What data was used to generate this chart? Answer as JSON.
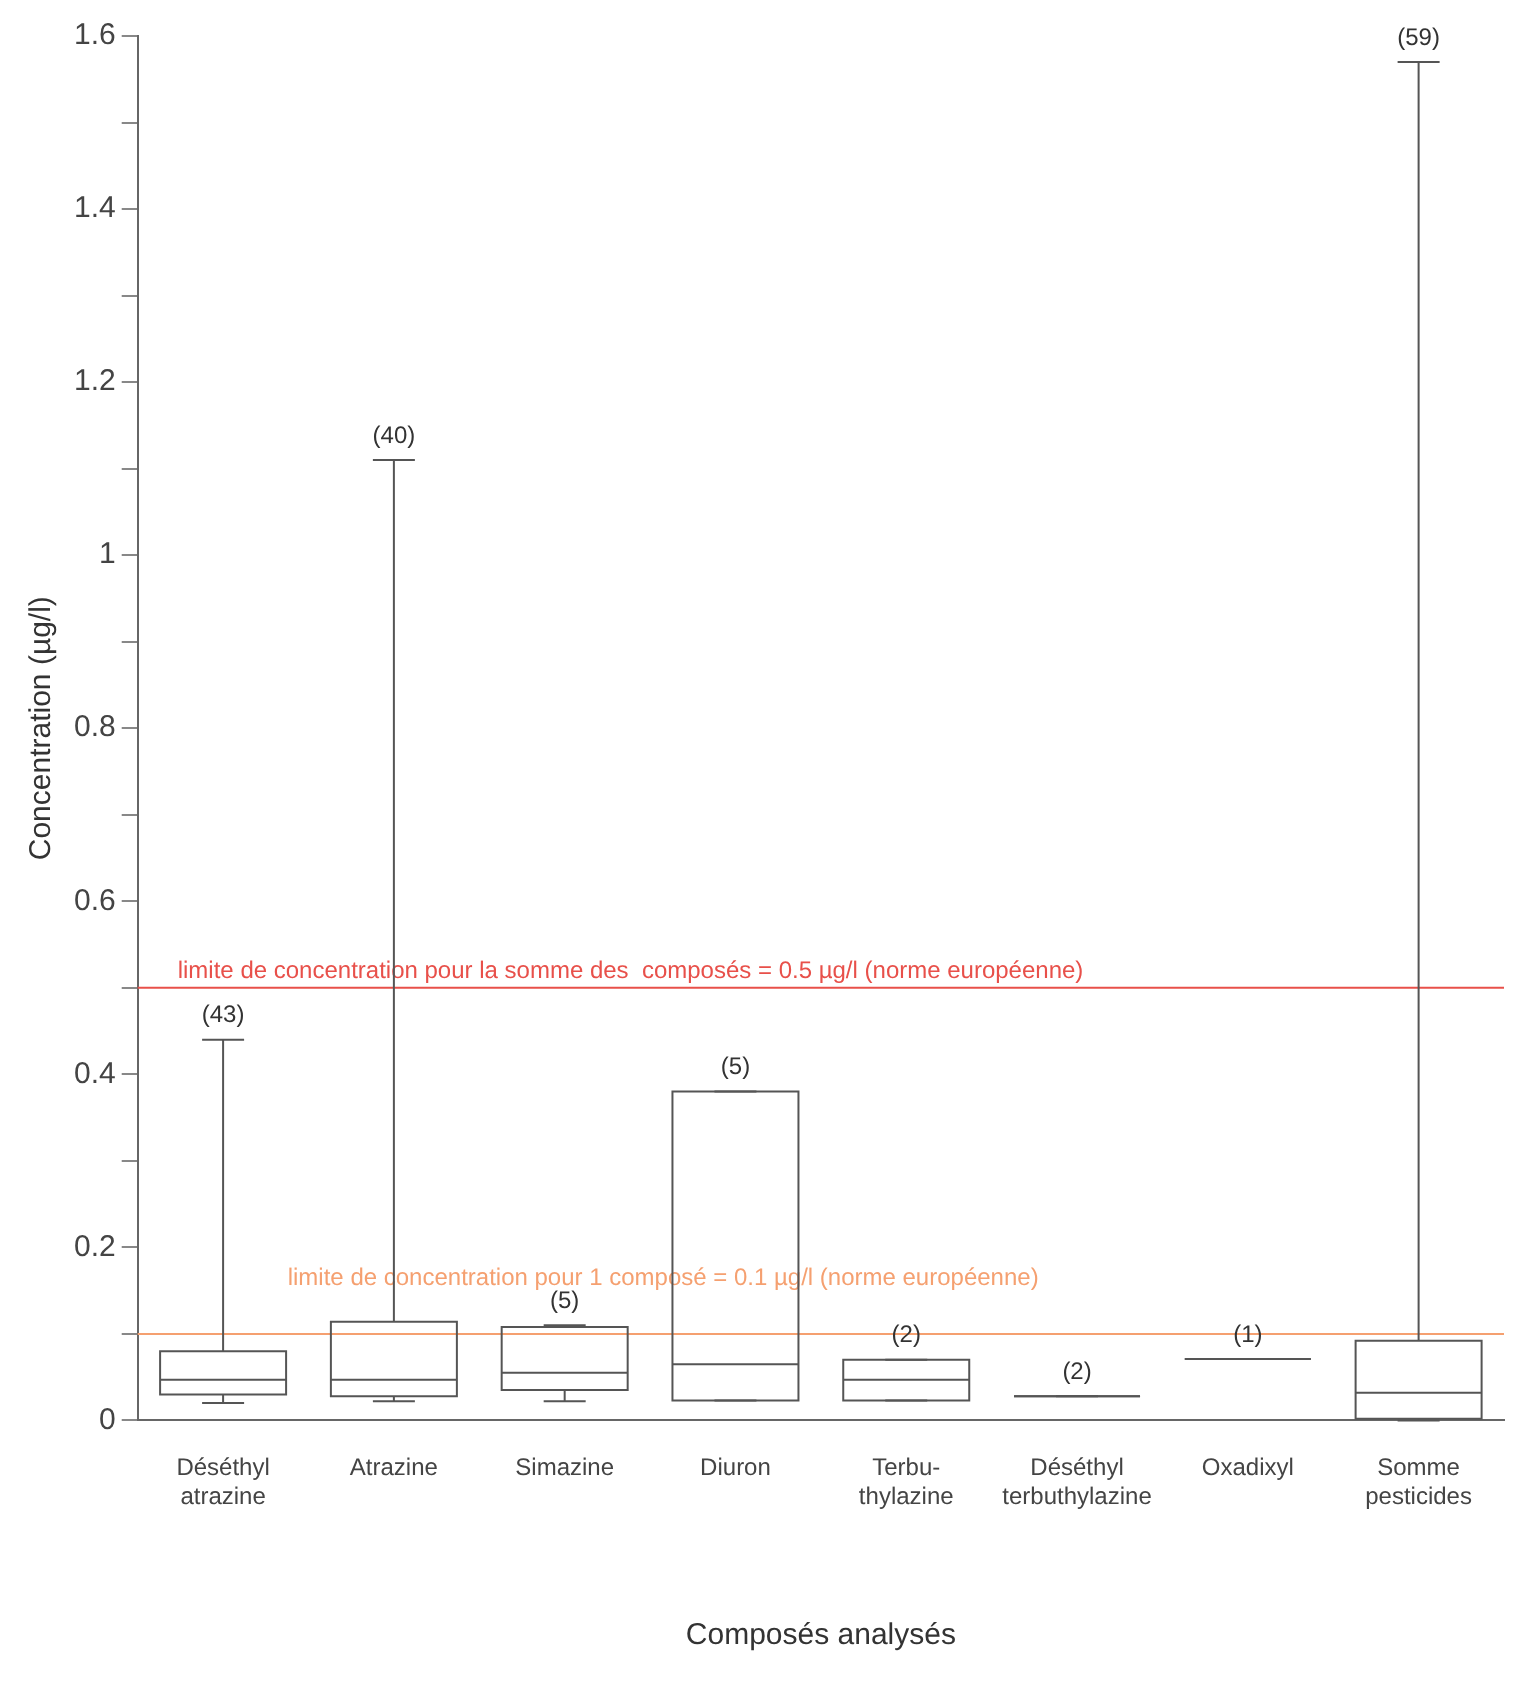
{
  "chart_data": {
    "type": "box",
    "xlabel": "Composés analysés",
    "ylabel": "Concentration (µg/l)",
    "categories": [
      "Déséthyl atrazine",
      "Atrazine",
      "Simazine",
      "Diuron",
      "Terbu-thylazine",
      "Déséthyl terbuthylazine",
      "Oxadixyl",
      "Somme pesticides"
    ],
    "boxes": [
      {
        "low": 0.02,
        "q1": 0.03,
        "median": 0.047,
        "q3": 0.08,
        "high": 0.44
      },
      {
        "low": 0.022,
        "q1": 0.028,
        "median": 0.047,
        "q3": 0.114,
        "high": 1.11
      },
      {
        "low": 0.022,
        "q1": 0.035,
        "median": 0.055,
        "q3": 0.108,
        "high": 0.11
      },
      {
        "low": 0.023,
        "q1": 0.023,
        "median": 0.065,
        "q3": 0.38,
        "high": 0.38
      },
      {
        "low": 0.023,
        "q1": 0.023,
        "median": 0.047,
        "q3": 0.07,
        "high": 0.07
      },
      {
        "low": 0.028,
        "q1": 0.028,
        "median": 0.028,
        "q3": 0.028,
        "high": 0.028
      },
      {
        "low": 0.071,
        "q1": 0.071,
        "median": 0.071,
        "q3": 0.071,
        "high": 0.071
      },
      {
        "low": 0,
        "q1": 0.002,
        "median": 0.032,
        "q3": 0.092,
        "high": 1.57
      }
    ],
    "color": "#555555",
    "ylim": [
      0,
      1.6
    ],
    "yticks": [
      0,
      {
        "value": 0.1,
        "label": null
      },
      0.2,
      {
        "value": 0.3,
        "label": null
      },
      0.4,
      {
        "value": 0.5,
        "label": null
      },
      0.6,
      {
        "value": 0.7,
        "label": null
      },
      0.8,
      {
        "value": 0.9,
        "label": null
      },
      1,
      {
        "value": 1.1,
        "label": null
      },
      1.2,
      {
        "value": 1.3,
        "label": null
      },
      1.4,
      {
        "value": 1.5,
        "label": null
      },
      1.6
    ],
    "ref_lines": [
      {
        "axis": "y",
        "value": 0.5,
        "label": "limite de concentration pour la somme des  composés = 0.5 µg/l (norme européenne)",
        "color": "#e8504a"
      },
      {
        "axis": "y",
        "value": 0.1,
        "label": "limite de concentration pour 1 composé = 0.1 µg/l (norme européenne)",
        "color": "#f5a070"
      }
    ],
    "annotations": [
      {
        "text": "(43)",
        "x": "Déséthyl atrazine",
        "y": 0.44
      },
      {
        "text": "(40)",
        "x": "Atrazine",
        "y": 1.11
      },
      {
        "text": "(5)",
        "x": "Simazine",
        "y": 0.11
      },
      {
        "text": "(5)",
        "x": "Diuron",
        "y": 0.38
      },
      {
        "text": "(2)",
        "x": "Terbu-thylazine",
        "y": 0.07
      },
      {
        "text": "(2)",
        "x": "Déséthyl terbuthylazine",
        "y": 0.028
      },
      {
        "text": "(1)",
        "x": "Oxadixyl",
        "y": 0.071
      },
      {
        "text": "(59)",
        "x": "Somme pesticides",
        "y": 1.57
      }
    ],
    "grid": false,
    "legend": false
  }
}
